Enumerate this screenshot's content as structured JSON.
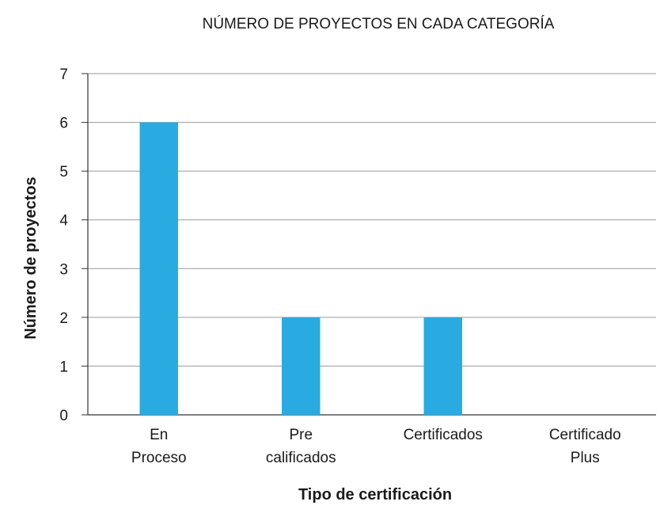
{
  "chart_data": {
    "type": "bar",
    "title": "NÚMERO DE PROYECTOS EN CADA CATEGORÍA",
    "xlabel": "Tipo de certificación",
    "ylabel": "Número de proyectos",
    "categories": [
      [
        "En",
        "Proceso"
      ],
      [
        "Pre",
        "calificados"
      ],
      [
        "Certificados"
      ],
      [
        "Certificado",
        "Plus"
      ]
    ],
    "values": [
      6,
      2,
      2,
      0
    ],
    "ylim": [
      0,
      7
    ],
    "yticks": [
      "0",
      "1",
      "2",
      "3",
      "4",
      "5",
      "6",
      "7"
    ],
    "grid": true,
    "bar_color": "#29abe2",
    "grid_color": "#9a9a9a",
    "axis_color": "#333333"
  }
}
